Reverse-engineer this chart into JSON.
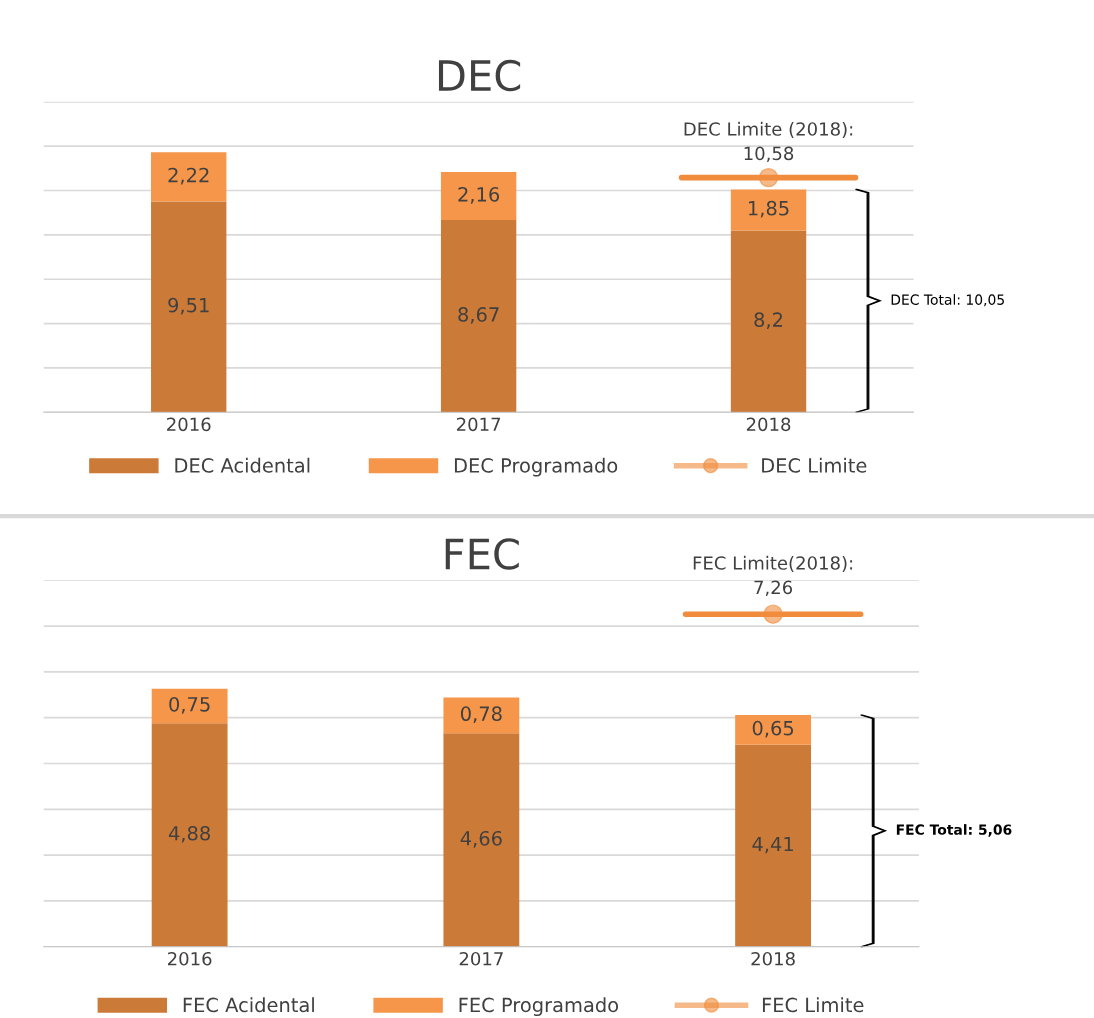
{
  "chart_data": [
    {
      "type": "bar",
      "title": "DEC",
      "stacked": true,
      "categories": [
        "2016",
        "2017",
        "2018"
      ],
      "ylim": [
        0,
        14
      ],
      "yticks": [
        {
          "value": 0,
          "label": null
        },
        {
          "value": 2,
          "label": null
        },
        {
          "value": 4,
          "label": null
        },
        {
          "value": 6,
          "label": null
        },
        {
          "value": 8,
          "label": null
        },
        {
          "value": 10,
          "label": null
        },
        {
          "value": 12,
          "label": null
        },
        {
          "value": 14,
          "label": null
        }
      ],
      "grid": "y",
      "tick_labels": "x",
      "legend": "bottom",
      "series": [
        {
          "name": "DEC Acidental",
          "color": "#cc7a38",
          "values": [
            9.51,
            8.67,
            8.2
          ],
          "value_labels": [
            "9,51",
            "8,67",
            "8,2"
          ]
        },
        {
          "name": "DEC Programado",
          "color": "#f5964a",
          "values": [
            2.22,
            2.16,
            1.85
          ],
          "value_labels": [
            "2,22",
            "2,16",
            "1,85"
          ]
        },
        {
          "name": "DEC Limite",
          "type": "line",
          "marker": "circle",
          "color": "#f08c3c",
          "values": [
            null,
            null,
            10.58
          ],
          "value_labels": [
            null,
            null,
            "DEC Limite (2018):\n10,58"
          ]
        }
      ],
      "ref_lines": [
        {
          "axis": "y",
          "value": 10.58,
          "color": "#f08c3c"
        }
      ],
      "annotations": [
        "DEC Total: 10,05"
      ]
    },
    {
      "type": "bar",
      "title": "FEC",
      "stacked": true,
      "categories": [
        "2016",
        "2017",
        "2018"
      ],
      "ylim": [
        0,
        8
      ],
      "yticks": [
        {
          "value": 0,
          "label": null
        },
        {
          "value": 1,
          "label": null
        },
        {
          "value": 2,
          "label": null
        },
        {
          "value": 3,
          "label": null
        },
        {
          "value": 4,
          "label": null
        },
        {
          "value": 5,
          "label": null
        },
        {
          "value": 6,
          "label": null
        },
        {
          "value": 7,
          "label": null
        },
        {
          "value": 8,
          "label": null
        }
      ],
      "grid": "y",
      "tick_labels": "x",
      "legend": "bottom",
      "series": [
        {
          "name": "FEC Acidental",
          "color": "#cc7a38",
          "values": [
            4.88,
            4.66,
            4.41
          ],
          "value_labels": [
            "4,88",
            "4,66",
            "4,41"
          ]
        },
        {
          "name": "FEC Programado",
          "color": "#f5964a",
          "values": [
            0.75,
            0.78,
            0.65
          ],
          "value_labels": [
            "0,75",
            "0,78",
            "0,65"
          ]
        },
        {
          "name": "FEC Limite",
          "type": "line",
          "marker": "circle",
          "color": "#f08c3c",
          "values": [
            null,
            null,
            7.26
          ],
          "value_labels": [
            null,
            null,
            "FEC Limite(2018):\n7,26"
          ]
        }
      ],
      "ref_lines": [
        {
          "axis": "y",
          "value": 7.26,
          "color": "#f08c3c"
        }
      ],
      "annotations": [
        "FEC Total: 5,06"
      ]
    }
  ]
}
